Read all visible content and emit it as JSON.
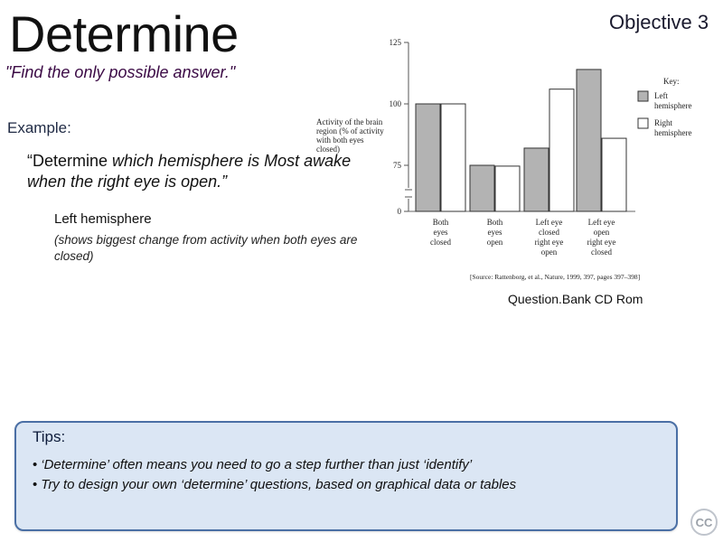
{
  "slide": {
    "title": "Determine",
    "objective": "Objective 3",
    "instruction": "\"Find the only possible answer.\"",
    "example_label": "Example:",
    "example_quote_keyword": "“Determine",
    "example_quote_rest": " which hemisphere is Most awake when the right eye is open.”",
    "answer": "Left hemisphere",
    "answer_note": "(shows biggest change from activity when both eyes are closed)",
    "credit": "Question.Bank CD Rom"
  },
  "tips": {
    "title": "Tips:",
    "items": [
      "‘Determine’ often means you need to go a step further than just ‘identify’",
      "Try to design your own ‘determine’ questions, based on graphical data or tables"
    ]
  },
  "badge": {
    "label": "CC"
  },
  "colors": {
    "left": "#b3b3b3",
    "right": "#ffffff",
    "tips_border": "#4a6fa5",
    "tips_fill": "#dbe6f4"
  },
  "chart_data": {
    "type": "bar",
    "ylabel_lines": [
      "Activity of the brain",
      "region (% of activity",
      "with both eyes",
      "closed)"
    ],
    "yticks": [
      0,
      75,
      100,
      125
    ],
    "ylim": [
      0,
      125
    ],
    "axis_break": true,
    "categories": [
      [
        "Both",
        "eyes",
        "closed"
      ],
      [
        "Both",
        "eyes",
        "open"
      ],
      [
        "Left eye",
        "closed",
        "right eye",
        "open"
      ],
      [
        "Left eye",
        "open",
        "right eye",
        "closed"
      ]
    ],
    "series": [
      {
        "name": "Left hemisphere",
        "values": [
          100,
          75,
          82,
          114
        ]
      },
      {
        "name": "Right hemisphere",
        "values": [
          100,
          74,
          106,
          86
        ]
      }
    ],
    "legend_title": "Key:",
    "legend": [
      {
        "lines": [
          "Left",
          "hemisphere"
        ],
        "series": 0
      },
      {
        "lines": [
          "Right",
          "hemisphere"
        ],
        "series": 1
      }
    ],
    "legend_position": "top-right",
    "source": "[Source: Rattenborg, et al., Nature, 1999, 397, pages 397–398]"
  }
}
